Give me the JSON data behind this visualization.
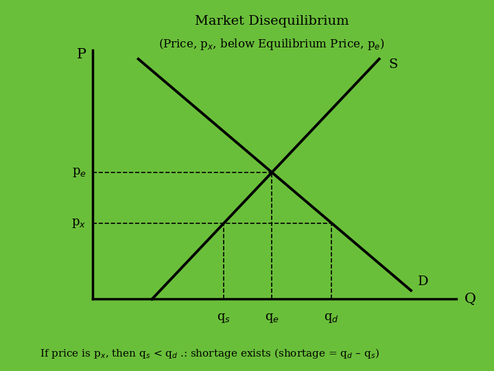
{
  "title": "Market Disequilibrium",
  "subtitle": "(Price, p$_x$, below Equilibrium Price, p$_e$)",
  "bg_color": "#6abf3a",
  "line_color": "#000000",
  "axis_label_P": "P",
  "axis_label_Q": "Q",
  "label_S": "S",
  "label_D": "D",
  "label_pe": "p$_e$",
  "label_px": "p$_x$",
  "label_qs": "q$_s$",
  "label_qe": "q$_e$",
  "label_qd": "q$_d$",
  "footnote": "If price is p$_x$, then q$_s$ < q$_d$ .: shortage exists (shortage = q$_d$ – q$_s$)",
  "s_x0": 2.8,
  "s_y0": 1.2,
  "s_x1": 7.8,
  "s_y1": 9.5,
  "d_x0": 2.5,
  "d_y0": 9.5,
  "d_x1": 8.5,
  "d_y1": 1.5,
  "ax_x0": 1.5,
  "ax_y0": 1.2,
  "ax_x1": 9.5,
  "ax_y1": 9.8,
  "xlim": [
    0,
    10
  ],
  "ylim": [
    0,
    10
  ]
}
